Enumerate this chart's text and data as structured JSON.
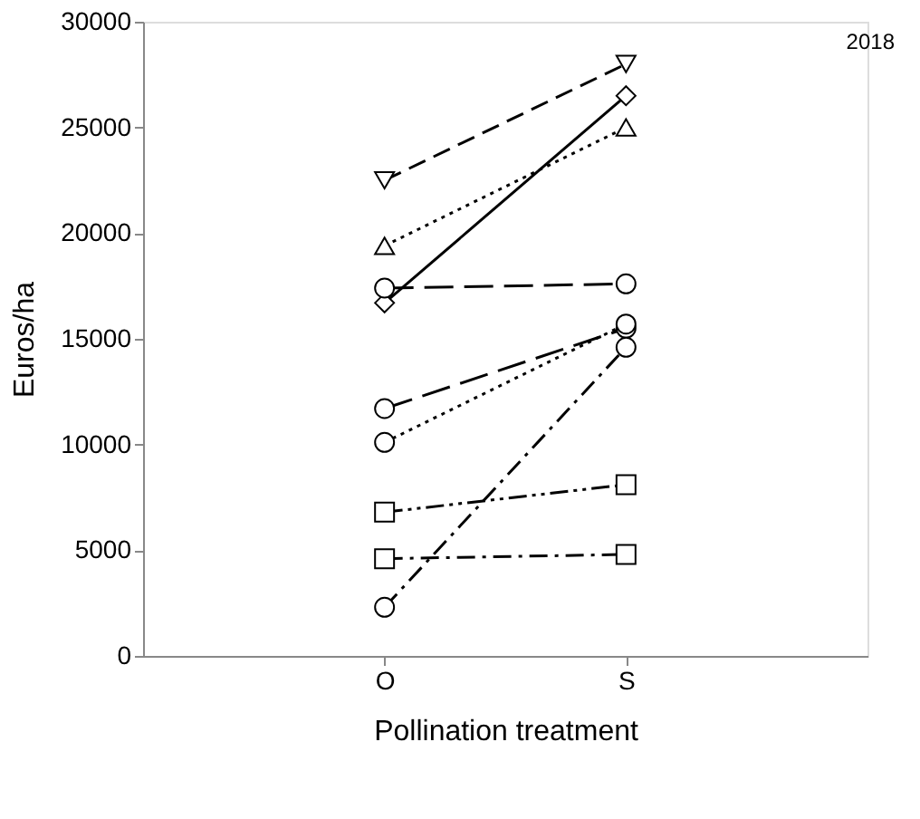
{
  "chart_data": {
    "type": "line",
    "xlabel": "Pollination treatment",
    "ylabel": "Euros/ha",
    "annotations": [
      "2018"
    ],
    "categories": [
      "O",
      "S"
    ],
    "ylim": [
      0,
      30000
    ],
    "yticks": [
      0,
      5000,
      10000,
      15000,
      20000,
      25000,
      30000
    ],
    "grid": false,
    "series": [
      {
        "color": "#000000",
        "values": [
          22500,
          28000
        ],
        "marker": "triangle-down",
        "line_style": "dashed"
      },
      {
        "color": "#000000",
        "values": [
          16700,
          26500
        ],
        "marker": "diamond",
        "line_style": "solid"
      },
      {
        "color": "#000000",
        "values": [
          19400,
          25000
        ],
        "marker": "triangle",
        "line_style": "dotted"
      },
      {
        "color": "#000000",
        "values": [
          17400,
          17600
        ],
        "marker": "circle",
        "line_style": "longdash"
      },
      {
        "color": "#000000",
        "values": [
          11700,
          15500
        ],
        "marker": "circle",
        "line_style": "longdash"
      },
      {
        "color": "#000000",
        "values": [
          10100,
          15700
        ],
        "marker": "circle",
        "line_style": "dotted"
      },
      {
        "color": "#000000",
        "values": [
          6800,
          8100
        ],
        "marker": "square",
        "line_style": "dashdotdot"
      },
      {
        "color": "#000000",
        "values": [
          4600,
          4800
        ],
        "marker": "square",
        "line_style": "dashdot"
      },
      {
        "color": "#000000",
        "values": [
          2300,
          14600
        ],
        "marker": "circle",
        "line_style": "dashdot"
      }
    ]
  }
}
